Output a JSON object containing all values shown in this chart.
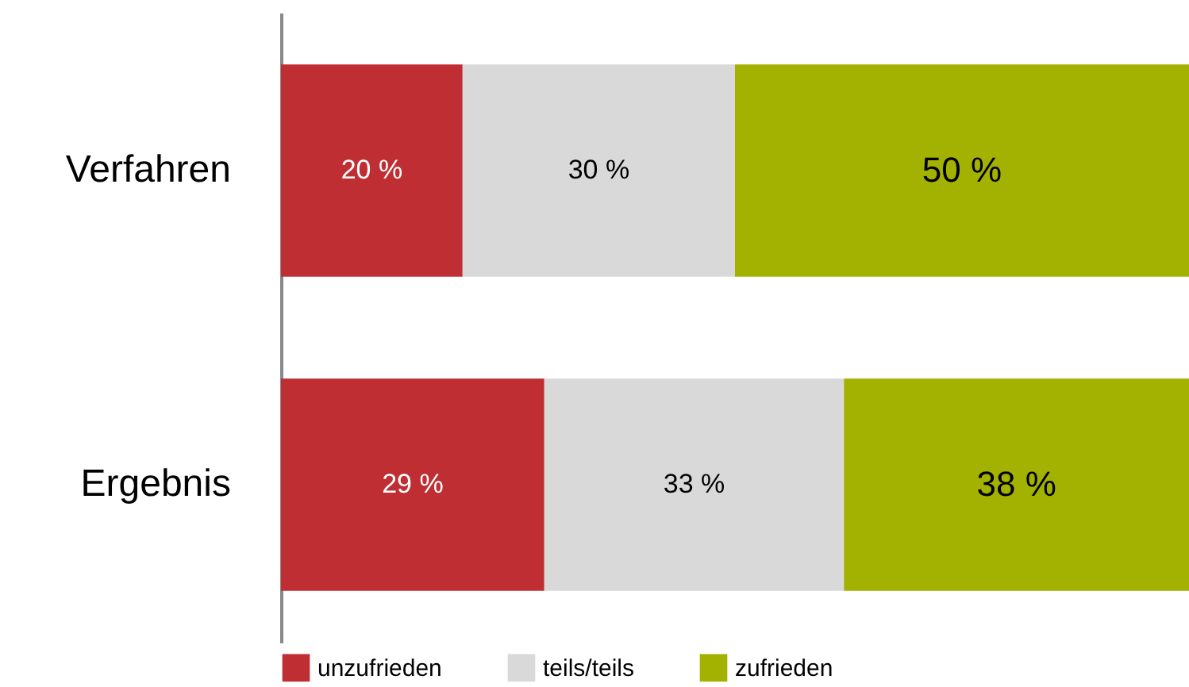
{
  "chart_data": {
    "type": "bar",
    "orientation": "horizontal",
    "stacked": true,
    "categories": [
      "Verfahren",
      "Ergebnis"
    ],
    "series": [
      {
        "name": "unzufrieden",
        "color": "#be2e33",
        "values": [
          20,
          29
        ],
        "value_labels": [
          "20 %",
          "29 %"
        ]
      },
      {
        "name": "teils/teils",
        "color": "#d9d9d9",
        "values": [
          30,
          33
        ],
        "value_labels": [
          "30 %",
          "33 %"
        ]
      },
      {
        "name": "zufrieden",
        "color": "#a3b100",
        "values": [
          50,
          38
        ],
        "value_labels": [
          "50 %",
          "38 %"
        ]
      }
    ],
    "xlim": [
      0,
      100
    ],
    "tick_labels": "y",
    "legend": "bottom",
    "grid": false
  }
}
